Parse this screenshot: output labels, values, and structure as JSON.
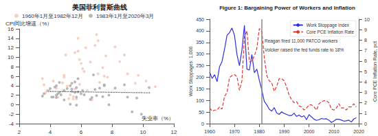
{
  "chart_data": [
    {
      "type": "scatter",
      "title": "美国菲利普斯曲线",
      "x_label": "失业率（%）",
      "y_label": "CPI同比增速（%）",
      "xlim": [
        2,
        12
      ],
      "xticks": [
        2,
        4,
        6,
        8,
        10,
        12
      ],
      "ylim": [
        -4,
        16
      ],
      "yticks": [
        -4,
        -2,
        0,
        2,
        4,
        6,
        8,
        10,
        12,
        14,
        16
      ],
      "grid": false,
      "legend": "top",
      "series": [
        {
          "name": "1960年1月至1982年12月",
          "color": "#f2c6b4",
          "marker": "circle",
          "x": [
            5.5,
            6.7,
            5.5,
            5.7,
            5.2,
            4.5,
            3.8,
            3.8,
            3.6,
            3.5,
            4.9,
            5.9,
            5.6,
            4.9,
            5.6,
            8.5,
            7.7,
            7.1,
            6.1,
            5.8,
            7.1,
            7.6,
            9.7,
            10.8,
            6.6,
            6.0,
            5.0,
            4.2,
            8.2,
            9.0,
            7.0,
            6.3,
            7.4,
            5.8,
            6.2,
            7.2,
            9.5,
            10.2,
            4.4,
            3.7,
            5.1,
            8.8,
            6.9,
            7.5,
            5.3,
            4.8,
            6.4,
            5.9
          ],
          "values": [
            1.7,
            1.0,
            1.2,
            1.2,
            1.3,
            1.6,
            2.9,
            3.0,
            4.2,
            5.5,
            5.8,
            4.3,
            3.3,
            6.2,
            11.0,
            9.1,
            5.8,
            6.5,
            7.6,
            11.3,
            13.5,
            10.3,
            6.2,
            3.8,
            9.0,
            8.7,
            10.5,
            5.0,
            12.2,
            6.5,
            14.8,
            12.0,
            7.8,
            14.0,
            7.0,
            4.7,
            4.5,
            5.0,
            3.5,
            2.5,
            3.9,
            10.5,
            12.5,
            6.0,
            2.1,
            4.6,
            3.0,
            9.5
          ]
        },
        {
          "name": "1983年1月至2020年3月",
          "color": "#a6a6a6",
          "marker": "circle",
          "x": [
            10.4,
            8.8,
            7.5,
            7.2,
            7.0,
            6.6,
            5.7,
            5.3,
            5.4,
            5.6,
            6.8,
            7.5,
            6.9,
            6.1,
            5.6,
            5.4,
            4.9,
            4.5,
            4.2,
            4.0,
            4.3,
            5.7,
            6.0,
            5.8,
            5.4,
            5.1,
            4.6,
            4.4,
            4.6,
            5.8,
            7.8,
            9.3,
            9.9,
            9.6,
            9.0,
            8.2,
            7.8,
            7.4,
            6.7,
            6.2,
            5.7,
            5.3,
            4.9,
            4.7,
            4.4,
            4.1,
            3.9,
            3.6,
            3.5,
            4.4
          ],
          "values": [
            3.6,
            4.2,
            4.0,
            3.5,
            1.9,
            1.1,
            3.6,
            4.0,
            4.5,
            4.8,
            6.3,
            4.2,
            3.2,
            3.0,
            2.6,
            2.8,
            3.0,
            2.3,
            1.6,
            3.4,
            3.7,
            1.6,
            2.3,
            2.7,
            3.3,
            3.4,
            2.6,
            4.0,
            4.7,
            5.5,
            0.0,
            -1.5,
            -2.0,
            1.4,
            1.6,
            3.5,
            2.0,
            1.7,
            1.5,
            2.1,
            -0.1,
            0.1,
            1.0,
            2.1,
            2.0,
            1.6,
            2.9,
            2.3,
            1.8,
            1.5
          ]
        },
        {
          "type": "line",
          "color": "#333333",
          "line_style": "dotted",
          "x": [
            4,
            10.5
          ],
          "values": [
            2.8,
            2.5
          ]
        }
      ]
    },
    {
      "type": "line",
      "title": "Figure 1: Bargaining Power of Workers and Inflation",
      "y_label": "Work Stoppages: 1,000",
      "y2_label": "Core PCE Inflation Rate, pct",
      "xlim": [
        1960,
        2020
      ],
      "xticks": [
        1960,
        1970,
        1980,
        1990,
        2000,
        2010,
        2020
      ],
      "ylim": [
        0,
        450
      ],
      "yticks": [
        0,
        50,
        100,
        150,
        200,
        250,
        300,
        350,
        400,
        450
      ],
      "y2lim": [
        0,
        10
      ],
      "y2ticks": [
        0,
        1,
        2,
        3,
        4,
        5,
        6,
        7,
        8,
        9,
        10
      ],
      "grid": false,
      "legend": "top-right",
      "vlines": [
        1981
      ],
      "annotations": [
        "Reagan fired 11,000 PATCO workers",
        "Volcker raised the fed funds rate to 18%"
      ],
      "x": [
        1960,
        1961,
        1962,
        1963,
        1964,
        1965,
        1966,
        1967,
        1968,
        1969,
        1970,
        1971,
        1972,
        1973,
        1974,
        1975,
        1976,
        1977,
        1978,
        1979,
        1980,
        1981,
        1982,
        1983,
        1984,
        1985,
        1986,
        1987,
        1988,
        1989,
        1990,
        1991,
        1992,
        1993,
        1994,
        1995,
        1996,
        1997,
        1998,
        1999,
        2000,
        2001,
        2002,
        2003,
        2004,
        2005,
        2006,
        2007,
        2008,
        2009,
        2010,
        2011,
        2012,
        2013,
        2014,
        2015,
        2016,
        2017,
        2018,
        2019
      ],
      "series": [
        {
          "name": "Work Stoppage Index",
          "color": "#2f2fe0",
          "line_style": "solid",
          "values": [
            222,
            195,
            211,
            181,
            246,
            268,
            321,
            381,
            392,
            412,
            381,
            298,
            250,
            317,
            424,
            235,
            231,
            298,
            219,
            235,
            187,
            145,
            96,
            81,
            62,
            54,
            69,
            46,
            40,
            51,
            44,
            40,
            35,
            35,
            45,
            31,
            37,
            29,
            34,
            17,
            39,
            29,
            19,
            14,
            17,
            22,
            20,
            21,
            15,
            5,
            11,
            19,
            19,
            15,
            11,
            12,
            15,
            7,
            20,
            25
          ]
        },
        {
          "name": "Core PCE Inflation Rate",
          "color": "#e8322e",
          "line_style": "dashed",
          "axis": "y2",
          "values": [
            1.5,
            1.2,
            1.3,
            1.3,
            1.6,
            1.4,
            2.6,
            3.0,
            4.4,
            4.6,
            4.7,
            4.5,
            3.2,
            4.1,
            8.3,
            8.9,
            5.9,
            6.0,
            6.5,
            7.2,
            9.1,
            8.8,
            6.3,
            4.6,
            4.1,
            3.9,
            3.1,
            3.6,
            4.3,
            4.3,
            4.1,
            3.5,
            2.7,
            2.3,
            2.0,
            2.1,
            1.7,
            1.6,
            1.3,
            1.5,
            1.8,
            1.8,
            1.6,
            1.3,
            1.9,
            2.1,
            2.2,
            2.2,
            2.0,
            1.4,
            1.3,
            1.5,
            1.9,
            1.5,
            1.5,
            1.3,
            1.6,
            1.6,
            1.9,
            1.6
          ]
        }
      ]
    }
  ]
}
